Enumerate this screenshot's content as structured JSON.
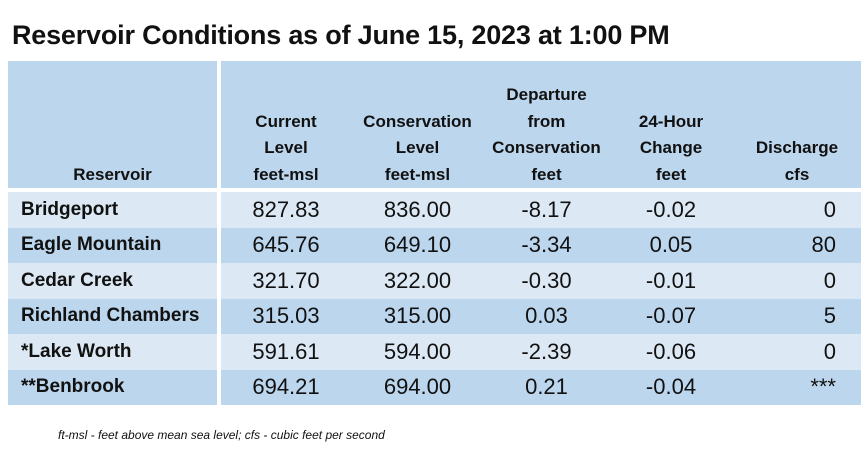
{
  "title": "Reservoir Conditions as of June 15, 2023 at 1:00 PM",
  "headers": [
    {
      "lines": [
        "Reservoir"
      ]
    },
    {
      "lines": [
        "Current",
        "Level",
        "feet-msl"
      ]
    },
    {
      "lines": [
        "Conservation",
        "Level",
        "feet-msl"
      ]
    },
    {
      "lines": [
        "Departure",
        "from",
        "Conservation",
        "feet"
      ]
    },
    {
      "lines": [
        "24-Hour",
        "Change",
        "feet"
      ]
    },
    {
      "lines": [
        "Discharge",
        "cfs"
      ]
    }
  ],
  "rows": [
    {
      "reservoir": "Bridgeport",
      "current": "827.83",
      "conservation": "836.00",
      "departure": "-8.17",
      "change": "-0.02",
      "discharge": "0"
    },
    {
      "reservoir": "Eagle Mountain",
      "current": "645.76",
      "conservation": "649.10",
      "departure": "-3.34",
      "change": "0.05",
      "discharge": "80"
    },
    {
      "reservoir": "Cedar Creek",
      "current": "321.70",
      "conservation": "322.00",
      "departure": "-0.30",
      "change": "-0.01",
      "discharge": "0"
    },
    {
      "reservoir": "Richland Chambers",
      "current": "315.03",
      "conservation": "315.00",
      "departure": "0.03",
      "change": "-0.07",
      "discharge": "5"
    },
    {
      "reservoir": "*Lake Worth",
      "current": "591.61",
      "conservation": "594.00",
      "departure": "-2.39",
      "change": "-0.06",
      "discharge": "0"
    },
    {
      "reservoir": "**Benbrook",
      "current": "694.21",
      "conservation": "694.00",
      "departure": "0.21",
      "change": "-0.04",
      "discharge": "***"
    }
  ],
  "footnote": "ft-msl - feet above mean sea level; cfs - cubic feet per second"
}
